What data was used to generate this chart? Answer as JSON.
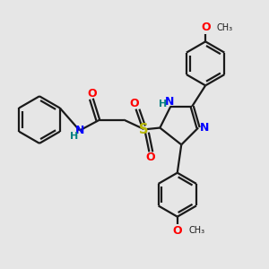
{
  "bg_color": "#e6e6e6",
  "bond_color": "#1a1a1a",
  "N_color": "#0000ff",
  "O_color": "#ff0000",
  "S_color": "#b8b800",
  "NH_color": "#008080",
  "line_width": 1.6,
  "font_size": 8.5,
  "fig_w": 3.0,
  "fig_h": 3.0,
  "dpi": 100,
  "xlim": [
    0,
    10
  ],
  "ylim": [
    0,
    10
  ]
}
